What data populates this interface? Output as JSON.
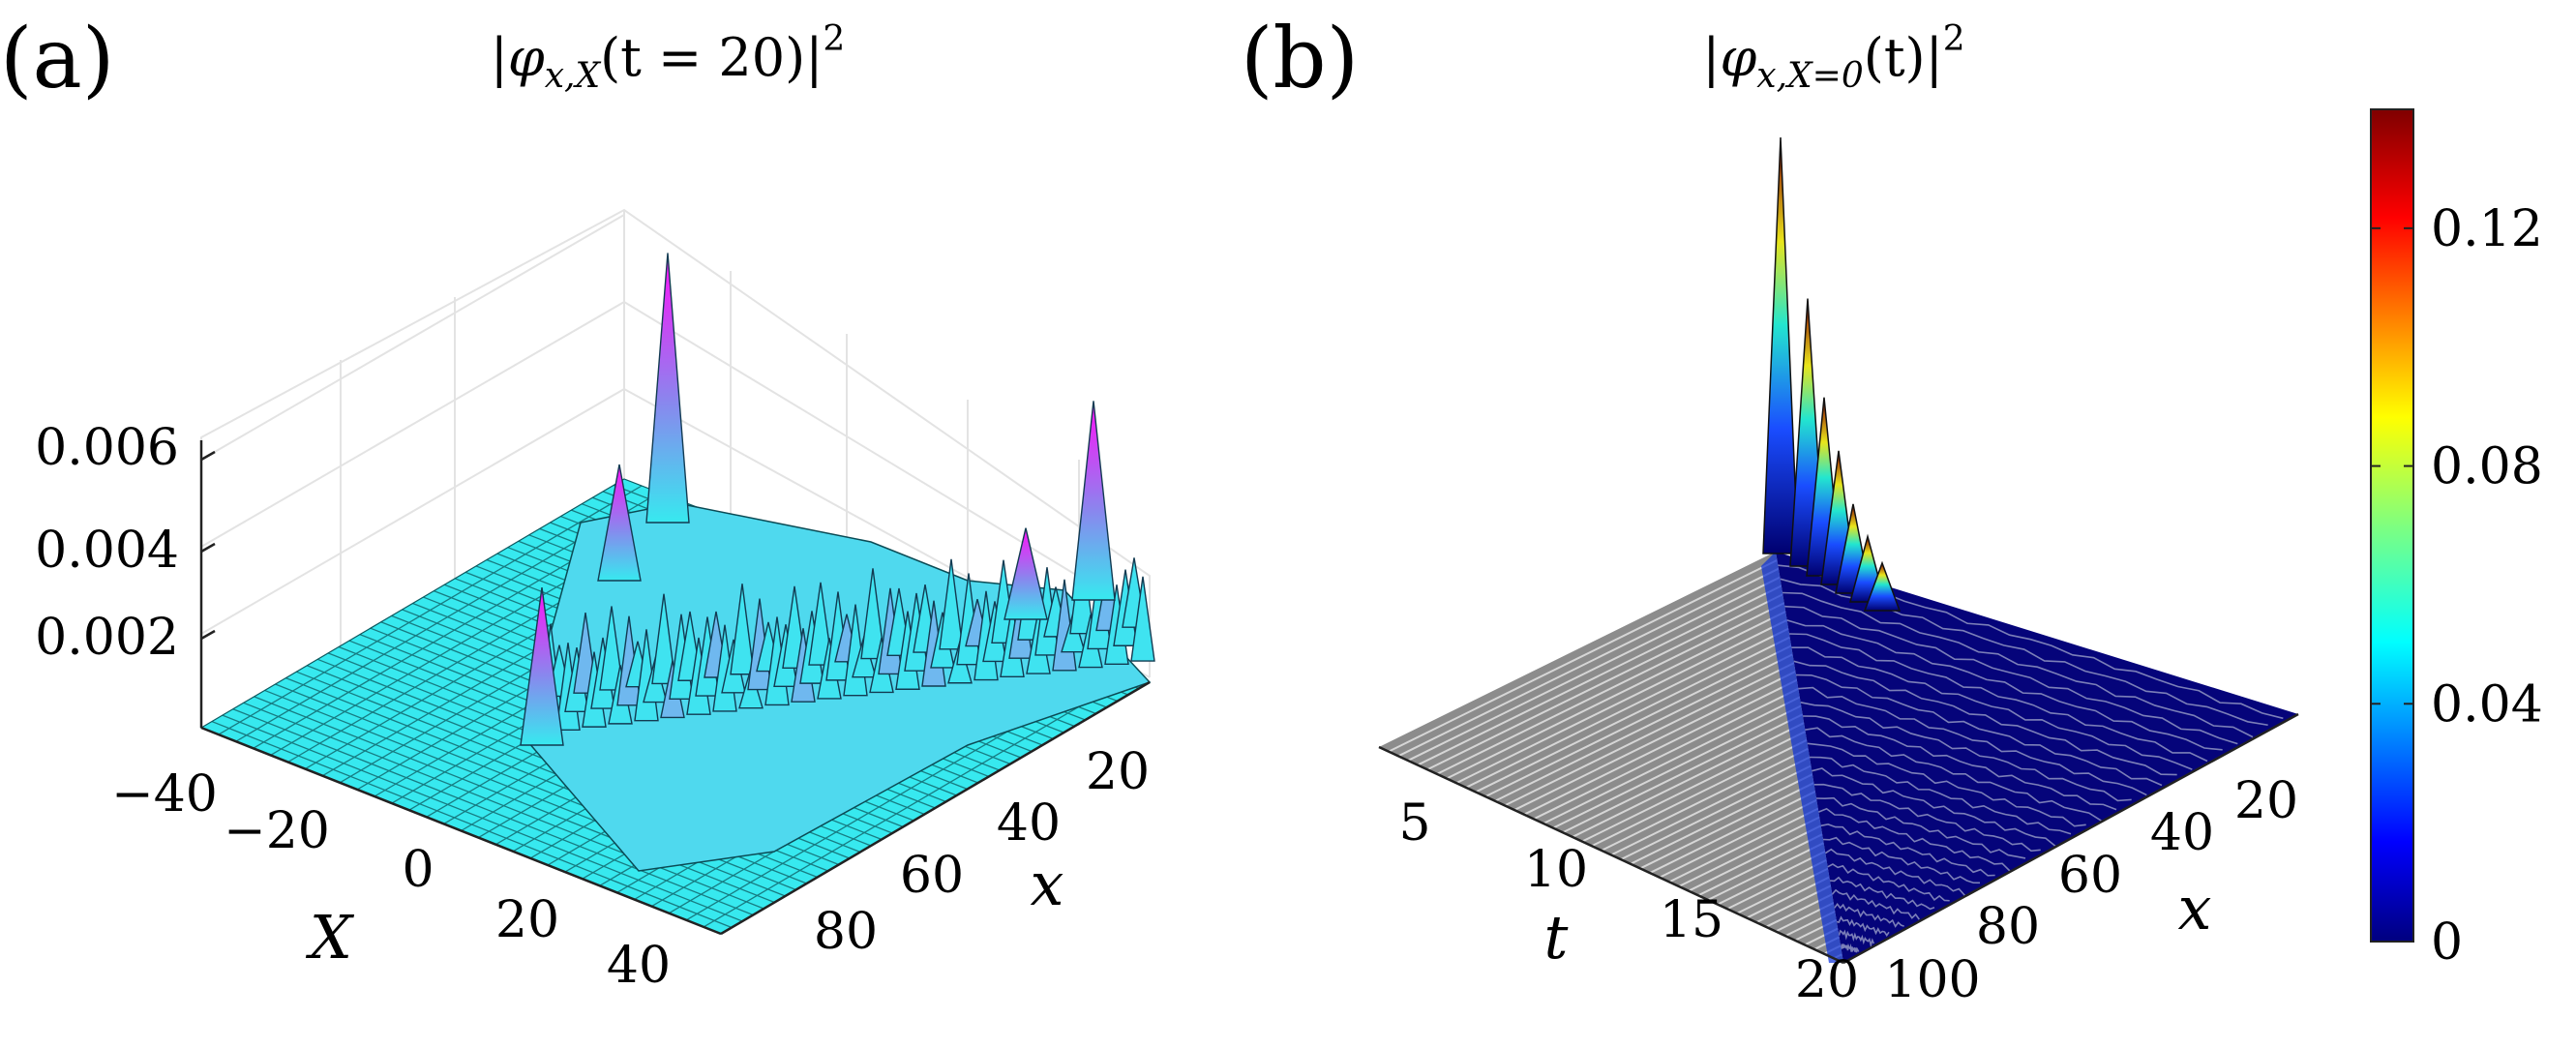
{
  "chart_data": [
    {
      "type": "surface",
      "panel_label": "(a)",
      "title": "|φ_{x,X}(t = 20)|²",
      "title_parts": {
        "open": "|",
        "phi": "φ",
        "sub": "x,X",
        "arg": "(t = 20)",
        "close": "|",
        "sup": "2"
      },
      "xlabel": "X",
      "ylabel": "x",
      "zlabel": "",
      "X_ticks": [
        "−40",
        "−20",
        "0",
        "20",
        "40"
      ],
      "X_range": [
        -45,
        45
      ],
      "x_ticks": [
        "20",
        "40",
        "60",
        "80"
      ],
      "x_range": [
        0,
        100
      ],
      "z_ticks": [
        "0.002",
        "0.004",
        "0.006"
      ],
      "z_range": [
        0,
        0.007
      ],
      "peaks": [
        {
          "X": -20,
          "x": 20,
          "z": 0.0065
        },
        {
          "X": 20,
          "x": 20,
          "z": 0.0065
        },
        {
          "X": 0,
          "x": 20,
          "z": 0.0058
        },
        {
          "X": -20,
          "x": 0,
          "z": 0.006
        },
        {
          "X": 20,
          "x": 0,
          "z": 0.0055
        }
      ],
      "colors": {
        "surface": "#37e9ef",
        "mid": "#8a86ee",
        "peak": "#ff10f8"
      }
    },
    {
      "type": "surface",
      "panel_label": "(b)",
      "title": "|φ_{x,X=0}(t)|²",
      "title_parts": {
        "open": "|",
        "phi": "φ",
        "sub": "x,X=0",
        "arg": "(t)",
        "close": "|",
        "sup": "2"
      },
      "xlabel": "t",
      "ylabel": "x",
      "t_ticks": [
        "5",
        "10",
        "15",
        "20"
      ],
      "t_range": [
        0,
        20
      ],
      "x_ticks": [
        "20",
        "40",
        "60",
        "80",
        "100"
      ],
      "x_range": [
        0,
        100
      ],
      "z_range": [
        0,
        0.14
      ],
      "max_value": 0.14,
      "colorbar": {
        "ticks": [
          "0",
          "0.04",
          "0.08",
          "0.12"
        ],
        "values": [
          0,
          0.04,
          0.08,
          0.12
        ],
        "range": [
          0,
          0.14
        ],
        "colormap": "jet"
      }
    }
  ]
}
